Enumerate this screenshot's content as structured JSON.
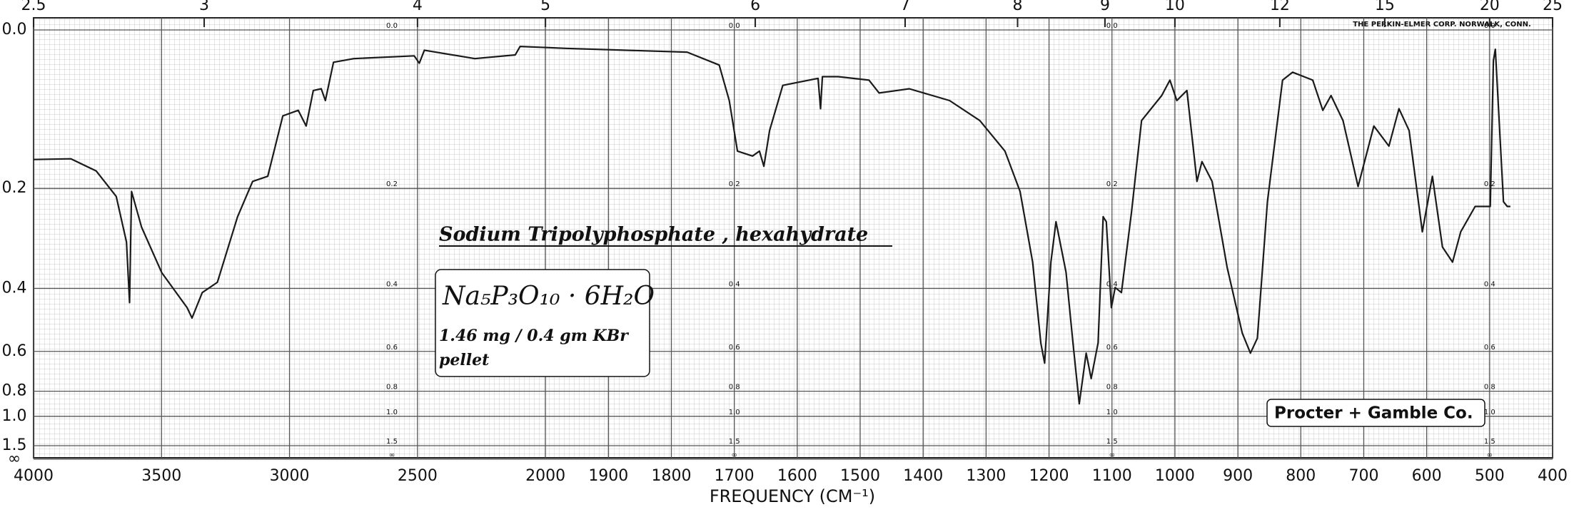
{
  "chart_data": {
    "type": "line",
    "x_label": "FREQUENCY (CM⁻¹)",
    "brand": "THE PERKIN-ELMER CORP. NORWALK, CONN.",
    "annotations": [
      "Sodium Tripolyphosphate , hexahydrate",
      "Na₅P₃O₁₀ · 6H₂O",
      "1.46 mg / 0.4 gm KBr",
      "pellet",
      "Procter + Gamble Co."
    ],
    "xlim": [
      4000,
      400
    ],
    "x_break": 2000,
    "xticks": [
      4000,
      3500,
      3000,
      2500,
      2000,
      1900,
      1800,
      1700,
      1600,
      1500,
      1400,
      1300,
      1200,
      1100,
      1000,
      900,
      800,
      700,
      600,
      500,
      400
    ],
    "x2ticks": [
      2.5,
      3,
      4,
      5,
      6,
      7,
      8,
      9,
      10,
      12,
      15,
      20,
      25
    ],
    "yscale": "absorbance",
    "ylim": [
      0,
      null
    ],
    "yticks": [
      {
        "value": 0,
        "label": "0.0"
      },
      0.2,
      0.4,
      0.6,
      0.8,
      {
        "value": 1,
        "label": "1.0"
      },
      1.5,
      {
        "value": null,
        "label": "∞"
      }
    ],
    "grid": true,
    "series": [
      {
        "name": "Sodium Tripolyphosphate , hexahydrate",
        "color": "#1a1a1a",
        "x": [
          4000,
          3854,
          3755,
          3677,
          3637,
          3625,
          3617,
          3578,
          3499,
          3400,
          3381,
          3341,
          3282,
          3203,
          3144,
          3085,
          3026,
          2966,
          2935,
          2907,
          2876,
          2860,
          2828,
          2749,
          2513,
          2493,
          2473,
          2276,
          2118,
          2099,
          1968,
          1775,
          1724,
          1708,
          1695,
          1671,
          1660,
          1653,
          1644,
          1623,
          1567,
          1563,
          1560,
          1535,
          1486,
          1470,
          1422,
          1358,
          1310,
          1270,
          1246,
          1226,
          1213,
          1207,
          1197,
          1189,
          1173,
          1162,
          1152,
          1141,
          1133,
          1122,
          1114,
          1109,
          1101,
          1095,
          1085,
          1069,
          1053,
          1021,
          1008,
          997,
          981,
          965,
          957,
          941,
          917,
          893,
          880,
          869,
          853,
          829,
          813,
          781,
          765,
          752,
          733,
          709,
          684,
          660,
          644,
          628,
          607,
          591,
          575,
          559,
          546,
          523,
          499,
          494,
          491,
          478,
          472,
          467
        ],
        "values": [
          0.156,
          0.155,
          0.173,
          0.213,
          0.296,
          0.438,
          0.205,
          0.267,
          0.362,
          0.452,
          0.483,
          0.411,
          0.385,
          0.248,
          0.189,
          0.181,
          0.097,
          0.09,
          0.11,
          0.066,
          0.064,
          0.078,
          0.034,
          0.03,
          0.027,
          0.035,
          0.021,
          0.03,
          0.026,
          0.017,
          0.019,
          0.023,
          0.037,
          0.078,
          0.144,
          0.151,
          0.144,
          0.166,
          0.116,
          0.06,
          0.052,
          0.088,
          0.05,
          0.05,
          0.054,
          0.069,
          0.064,
          0.078,
          0.103,
          0.144,
          0.205,
          0.338,
          0.568,
          0.65,
          0.338,
          0.257,
          0.361,
          0.567,
          0.889,
          0.607,
          0.726,
          0.567,
          0.248,
          0.257,
          0.452,
          0.398,
          0.411,
          0.24,
          0.103,
          0.072,
          0.054,
          0.078,
          0.066,
          0.189,
          0.159,
          0.189,
          0.35,
          0.532,
          0.607,
          0.55,
          0.222,
          0.054,
          0.045,
          0.054,
          0.09,
          0.072,
          0.103,
          0.197,
          0.11,
          0.137,
          0.088,
          0.116,
          0.276,
          0.181,
          0.306,
          0.338,
          0.276,
          0.23,
          0.23,
          0.032,
          0.02,
          0.222,
          0.23,
          0.23
        ]
      }
    ]
  }
}
